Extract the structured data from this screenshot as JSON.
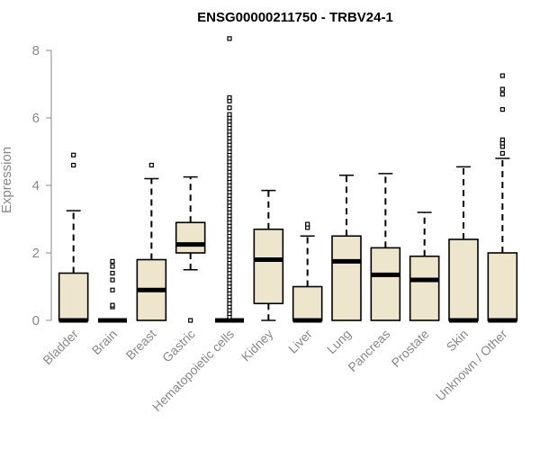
{
  "chart_data": {
    "type": "boxplot",
    "title": "ENSG00000211750 - TRBV24-1",
    "xlabel": "",
    "ylabel": "Expression",
    "ylim": [
      0,
      8.4
    ],
    "yticks": [
      0,
      2,
      4,
      6,
      8
    ],
    "box_fill": "#ede6cc",
    "axis_color": "#888888",
    "categories": [
      "Bladder",
      "Brain",
      "Breast",
      "Gastric",
      "Hematopoietic cells",
      "Kidney",
      "Liver",
      "Lung",
      "Pancreas",
      "Prostate",
      "Skin",
      "Unknown / Other"
    ],
    "boxes": [
      {
        "name": "Bladder",
        "whisker_low": 0,
        "q1": 0,
        "median": 0,
        "q3": 1.4,
        "whisker_high": 3.25,
        "outliers": [
          4.6,
          4.9
        ]
      },
      {
        "name": "Brain",
        "whisker_low": 0,
        "q1": 0,
        "median": 0,
        "q3": 0,
        "whisker_high": 0,
        "outliers": [
          0.4,
          0.45,
          0.9,
          1.2,
          1.4,
          1.6,
          1.75
        ]
      },
      {
        "name": "Breast",
        "whisker_low": 0,
        "q1": 0,
        "median": 0.9,
        "q3": 1.8,
        "whisker_high": 4.2,
        "outliers": [
          4.6
        ]
      },
      {
        "name": "Gastric",
        "whisker_low": 1.5,
        "q1": 2.0,
        "median": 2.25,
        "q3": 2.9,
        "whisker_high": 4.25,
        "outliers": [
          0
        ]
      },
      {
        "name": "Hematopoietic cells",
        "whisker_low": 0,
        "q1": 0,
        "median": 0,
        "q3": 0,
        "whisker_high": 0,
        "outliers": [
          0.1,
          0.2,
          0.3,
          0.4,
          0.5,
          0.6,
          0.7,
          0.8,
          0.9,
          1.0,
          1.1,
          1.2,
          1.3,
          1.4,
          1.5,
          1.6,
          1.7,
          1.8,
          1.9,
          2.0,
          2.1,
          2.2,
          2.3,
          2.4,
          2.5,
          2.6,
          2.7,
          2.8,
          2.9,
          3.0,
          3.1,
          3.2,
          3.3,
          3.4,
          3.5,
          3.6,
          3.7,
          3.8,
          3.9,
          4.0,
          4.1,
          4.2,
          4.3,
          4.4,
          4.5,
          4.6,
          4.7,
          4.8,
          4.9,
          5.0,
          5.1,
          5.2,
          5.3,
          5.4,
          5.5,
          5.6,
          5.7,
          5.8,
          5.9,
          6.0,
          6.1,
          6.3,
          6.5,
          6.6,
          8.35
        ]
      },
      {
        "name": "Kidney",
        "whisker_low": 0,
        "q1": 0.5,
        "median": 1.8,
        "q3": 2.7,
        "whisker_high": 3.85,
        "outliers": []
      },
      {
        "name": "Liver",
        "whisker_low": 0,
        "q1": 0,
        "median": 0,
        "q3": 1.0,
        "whisker_high": 2.5,
        "outliers": [
          2.75,
          2.85
        ]
      },
      {
        "name": "Lung",
        "whisker_low": 0,
        "q1": 0,
        "median": 1.75,
        "q3": 2.5,
        "whisker_high": 4.3,
        "outliers": []
      },
      {
        "name": "Pancreas",
        "whisker_low": 0,
        "q1": 0,
        "median": 1.35,
        "q3": 2.15,
        "whisker_high": 4.35,
        "outliers": []
      },
      {
        "name": "Prostate",
        "whisker_low": 0,
        "q1": 0,
        "median": 1.2,
        "q3": 1.9,
        "whisker_high": 3.2,
        "outliers": []
      },
      {
        "name": "Skin",
        "whisker_low": 0,
        "q1": 0,
        "median": 0,
        "q3": 2.4,
        "whisker_high": 4.55,
        "outliers": []
      },
      {
        "name": "Unknown / Other",
        "whisker_low": 0,
        "q1": 0,
        "median": 0,
        "q3": 2.0,
        "whisker_high": 4.8,
        "outliers": [
          4.95,
          5.15,
          5.25,
          5.35,
          6.25,
          6.7,
          6.85,
          7.25
        ]
      }
    ]
  }
}
